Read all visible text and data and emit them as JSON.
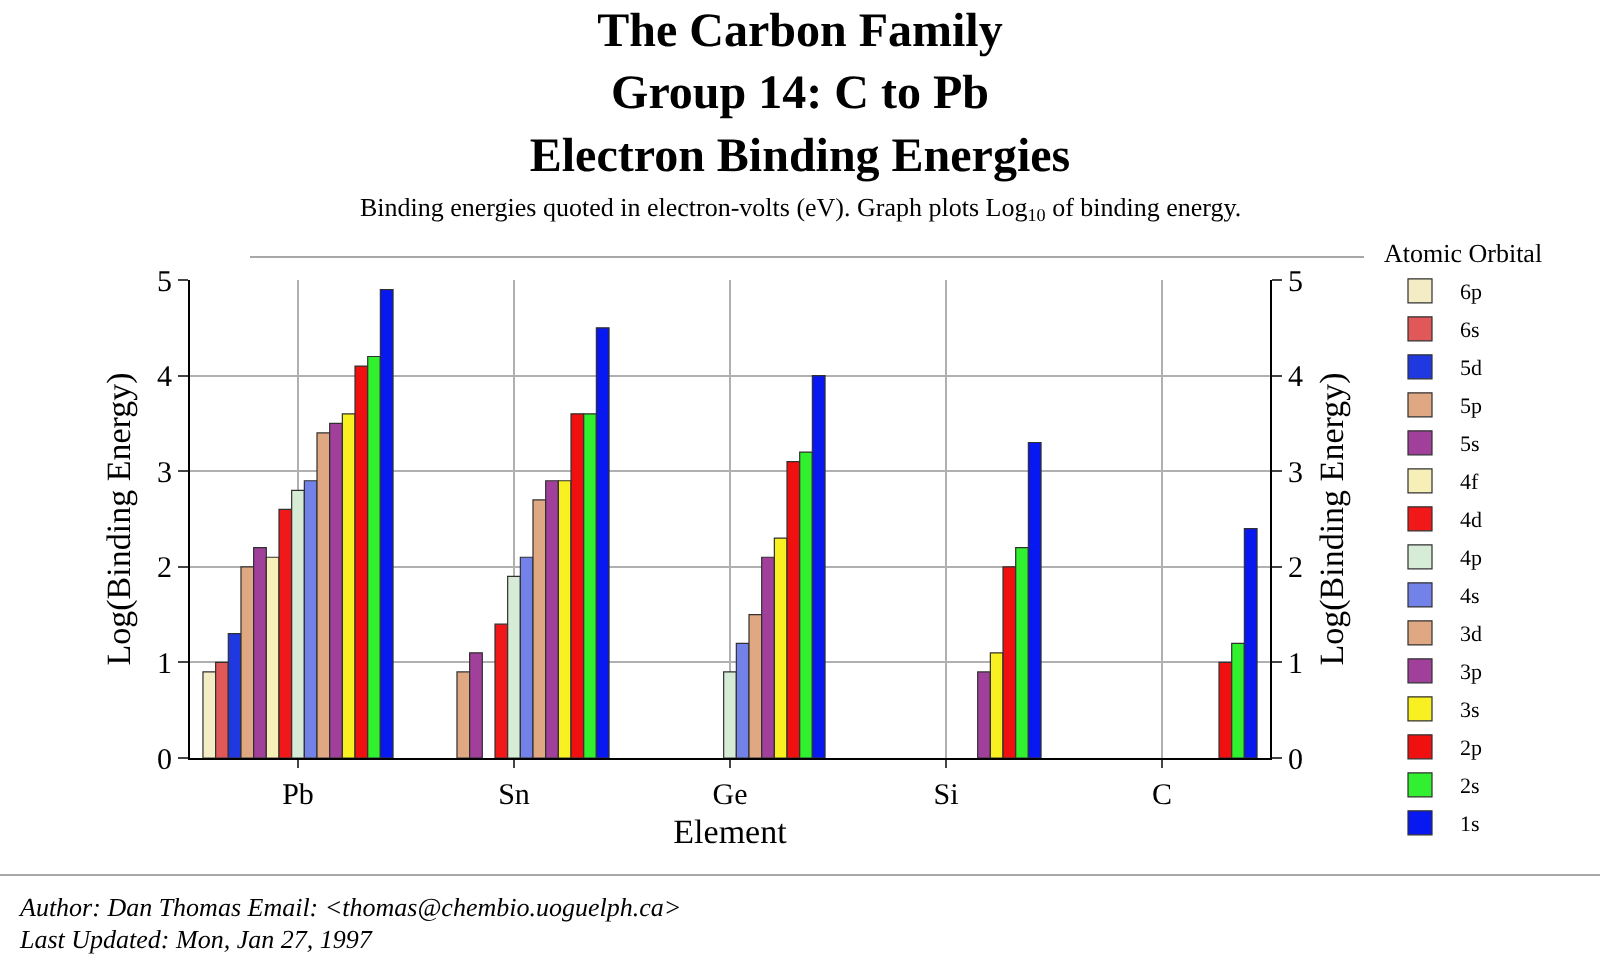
{
  "chart_data": {
    "type": "bar",
    "title": "The Carbon Family\nGroup 14: C to Pb\nElectron Binding Energies",
    "subtitle": "Binding energies quoted in electron-volts (eV). Graph plots Log$_{10}$ of binding energy.",
    "xlabel": "Element",
    "ylabel": "Log(Binding Energy)",
    "y2label": "Log(Binding Energy)",
    "legend_title": "Atomic Orbital",
    "categories": [
      "Pb",
      "Sn",
      "Ge",
      "Si",
      "C"
    ],
    "series": [
      {
        "name": "6p",
        "color": "#f3ecc4",
        "values": [
          0.9,
          null,
          null,
          null,
          null
        ]
      },
      {
        "name": "6s",
        "color": "#e05858",
        "values": [
          1.0,
          null,
          null,
          null,
          null
        ]
      },
      {
        "name": "5d",
        "color": "#2038e0",
        "values": [
          1.3,
          null,
          null,
          null,
          null
        ]
      },
      {
        "name": "5p",
        "color": "#e0a882",
        "values": [
          2.0,
          0.9,
          null,
          null,
          null
        ]
      },
      {
        "name": "5s",
        "color": "#a0409a",
        "values": [
          2.2,
          1.1,
          null,
          null,
          null
        ]
      },
      {
        "name": "4f",
        "color": "#f6f0b8",
        "values": [
          2.1,
          null,
          null,
          null,
          null
        ]
      },
      {
        "name": "4d",
        "color": "#f01818",
        "values": [
          2.6,
          1.4,
          null,
          null,
          null
        ]
      },
      {
        "name": "4p",
        "color": "#d6ecd6",
        "values": [
          2.8,
          1.9,
          0.9,
          null,
          null
        ]
      },
      {
        "name": "4s",
        "color": "#7282e8",
        "values": [
          2.9,
          2.1,
          1.2,
          null,
          null
        ]
      },
      {
        "name": "3d",
        "color": "#e0a882",
        "values": [
          3.4,
          2.7,
          1.5,
          null,
          null
        ]
      },
      {
        "name": "3p",
        "color": "#a0409a",
        "values": [
          3.5,
          2.9,
          2.1,
          0.9,
          null
        ]
      },
      {
        "name": "3s",
        "color": "#f8f020",
        "values": [
          3.6,
          2.9,
          2.3,
          1.1,
          null
        ]
      },
      {
        "name": "2p",
        "color": "#f01010",
        "values": [
          4.1,
          3.6,
          3.1,
          2.0,
          1.0
        ]
      },
      {
        "name": "2s",
        "color": "#30f030",
        "values": [
          4.2,
          3.6,
          3.2,
          2.2,
          1.2
        ]
      },
      {
        "name": "1s",
        "color": "#0818f0",
        "values": [
          4.9,
          4.5,
          4.0,
          3.3,
          2.4
        ]
      }
    ],
    "ylim": [
      0,
      5
    ],
    "yticks": [
      0,
      1,
      2,
      3,
      4,
      5
    ],
    "y2lim": [
      0,
      5
    ],
    "y2ticks": [
      0,
      1,
      2,
      3,
      4,
      5
    ],
    "grid": true,
    "legend": "right",
    "annotations": [
      "Author: Dan Thomas Email: <thomas@chembio.uoguelph.ca>",
      "Last Updated: Mon, Jan 27, 1997"
    ]
  }
}
